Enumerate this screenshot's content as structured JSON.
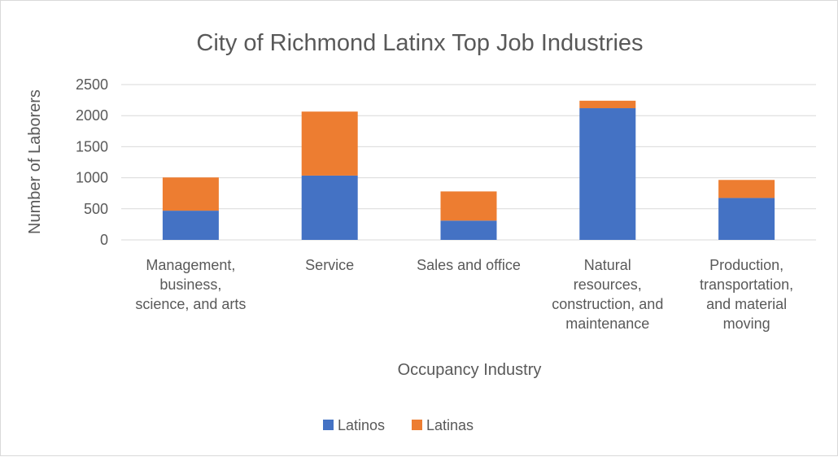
{
  "chart_data": {
    "type": "bar",
    "stacked": true,
    "title": "City of Richmond Latinx Top Job Industries",
    "xlabel": "Occupancy Industry",
    "ylabel": "Number of Laborers",
    "ylim": [
      0,
      2500
    ],
    "yticks": [
      0,
      500,
      1000,
      1500,
      2000,
      2500
    ],
    "grid": true,
    "legend_position": "bottom",
    "categories": [
      [
        "Management,",
        "business,",
        "science, and arts"
      ],
      [
        "Service"
      ],
      [
        "Sales and office"
      ],
      [
        "Natural",
        "resources,",
        "construction, and",
        "maintenance"
      ],
      [
        "Production,",
        "transportation,",
        "and material",
        "moving"
      ]
    ],
    "series": [
      {
        "name": "Latinos",
        "color": "#4472c4",
        "values": [
          470,
          1035,
          310,
          2120,
          675
        ]
      },
      {
        "name": "Latinas",
        "color": "#ed7d31",
        "values": [
          535,
          1030,
          470,
          120,
          290
        ]
      }
    ]
  }
}
